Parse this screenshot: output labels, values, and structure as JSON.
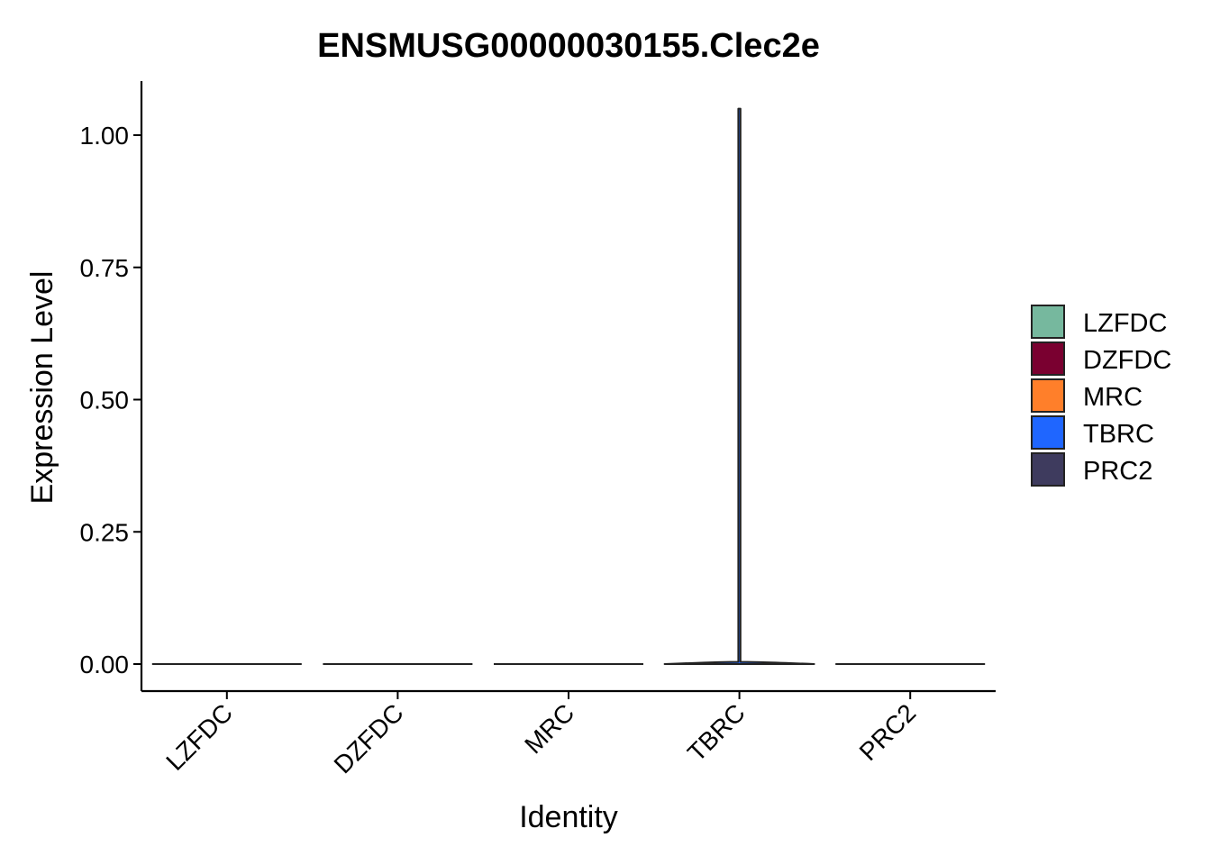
{
  "chart_data": {
    "type": "violin",
    "title": "ENSMUSG00000030155.Clec2e",
    "xlabel": "Identity",
    "ylabel": "Expression Level",
    "categories": [
      "LZFDC",
      "DZFDC",
      "MRC",
      "TBRC",
      "PRC2"
    ],
    "colors": [
      "#76B89E",
      "#7A0030",
      "#FF7F2A",
      "#1F66FF",
      "#3E3B5E"
    ],
    "y_ticks": [
      "0.00",
      "0.25",
      "0.50",
      "0.75",
      "1.00"
    ],
    "ylim": [
      -0.05,
      1.1
    ],
    "series": [
      {
        "category": "LZFDC",
        "min": 0,
        "max": 0
      },
      {
        "category": "DZFDC",
        "min": 0,
        "max": 0
      },
      {
        "category": "MRC",
        "min": 0,
        "max": 0
      },
      {
        "category": "TBRC",
        "min": 0,
        "max": 1.05
      },
      {
        "category": "PRC2",
        "min": 0,
        "max": 0
      }
    ],
    "legend": {
      "position": "right",
      "entries": [
        "LZFDC",
        "DZFDC",
        "MRC",
        "TBRC",
        "PRC2"
      ]
    },
    "grid": false
  }
}
